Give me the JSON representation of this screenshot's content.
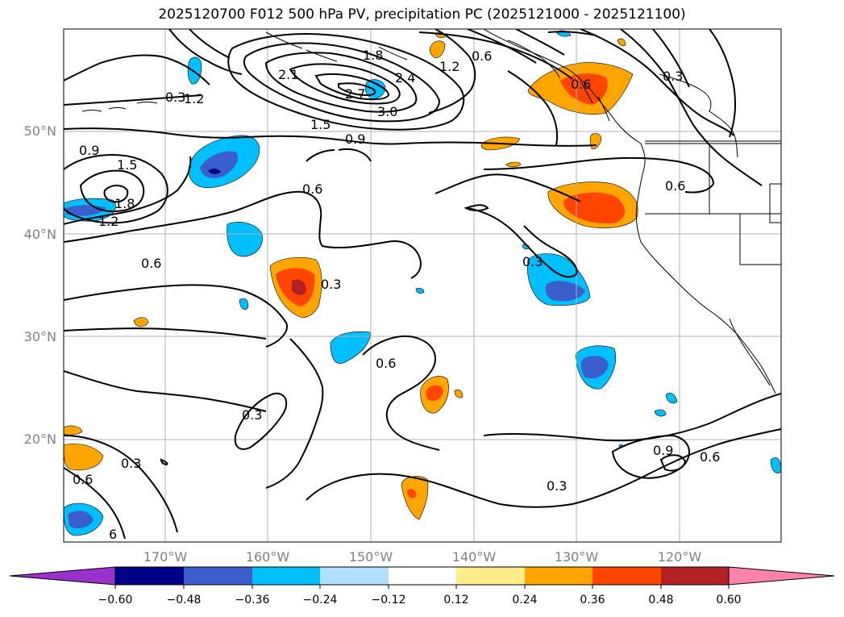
{
  "title": "2025120700 F012 500 hPa PV, precipitation PC (2025121000 - 2025121100)",
  "lon_ticks": [
    "170°W",
    "160°W",
    "150°W",
    "140°W",
    "130°W",
    "120°W"
  ],
  "lat_ticks": [
    "50°N",
    "40°N",
    "30°N",
    "20°N"
  ],
  "contour_labels": [
    "0.3",
    "0.6",
    "0.9",
    "1.2",
    "1.5",
    "1.8",
    "2.1",
    "2.4",
    "2.7",
    "3.0",
    "0.9",
    "1.5",
    "1.8",
    "1.2",
    "0.6",
    "0.3",
    "0.6",
    "0.3",
    "0.6",
    "0.3",
    "0.6",
    "0.3",
    "0.3",
    "0.6",
    "0.9",
    "0.6",
    "0.3",
    "0.6",
    "1.2",
    "6"
  ],
  "colorbar": {
    "labels": [
      "−0.60",
      "−0.48",
      "−0.36",
      "−0.24",
      "−0.12",
      "0.12",
      "0.24",
      "0.36",
      "0.48",
      "0.60"
    ],
    "colors": {
      "under": "#9932cc",
      "bins": [
        "#00008b",
        "#3a5fcd",
        "#00bfff",
        "#b0e2ff",
        "#ffffff",
        "#ffec8b",
        "#ffa500",
        "#ff4500",
        "#b22222"
      ],
      "over": "#ff82ab"
    }
  }
}
